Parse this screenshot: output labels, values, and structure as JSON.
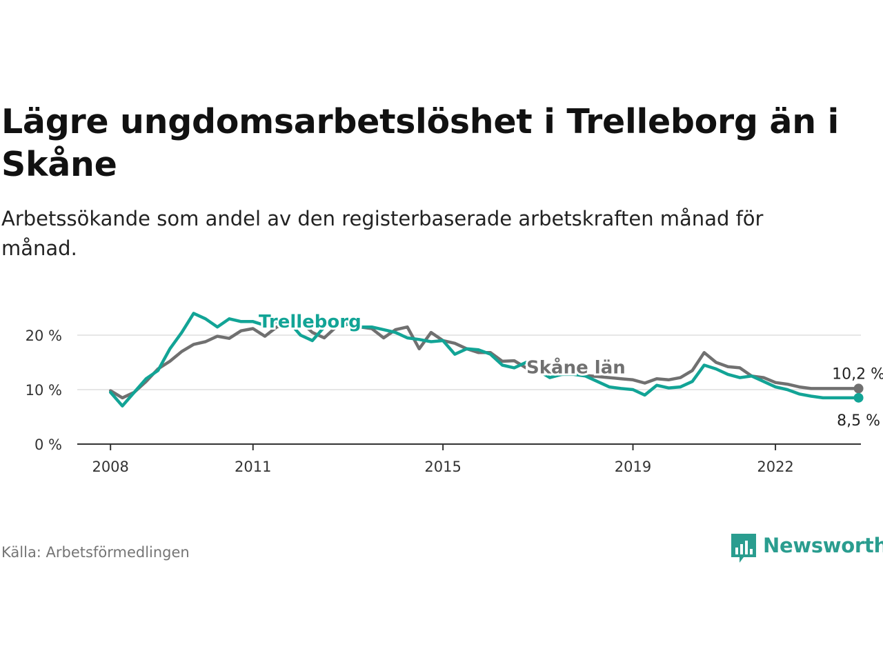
{
  "title": "Lägre ungdomsarbetslöshet i Trelleborg än i Skåne",
  "subtitle": "Arbetssökande som andel av den registerbaserade arbetskraften månad för månad.",
  "source": "Källa: Arbetsförmedlingen",
  "brand": {
    "name": "Newsworthy",
    "icon": "newsworthy-bars-icon"
  },
  "colors": {
    "trelleborg": "#12a496",
    "skane": "#707070",
    "grid": "#dddddd",
    "axis": "#333333",
    "brand": "#2a9d8f"
  },
  "chart_data": {
    "type": "line",
    "x_unit": "year",
    "xlim": [
      2007.3,
      2023.8
    ],
    "ylim": [
      0,
      20
    ],
    "y_ticks": [
      {
        "value": 0,
        "label": "0 %"
      },
      {
        "value": 10,
        "label": "10 %"
      },
      {
        "value": 20,
        "label": "20 %"
      }
    ],
    "x_ticks": [
      {
        "value": 2008,
        "label": "2008"
      },
      {
        "value": 2011,
        "label": "2011"
      },
      {
        "value": 2015,
        "label": "2015"
      },
      {
        "value": 2019,
        "label": "2019"
      },
      {
        "value": 2022,
        "label": "2022"
      }
    ],
    "series": [
      {
        "name": "Skåne län",
        "label": "Skåne län",
        "color": "#707070",
        "x": [
          2008.0,
          2008.25,
          2008.5,
          2008.75,
          2009.0,
          2009.25,
          2009.5,
          2009.75,
          2010.0,
          2010.25,
          2010.5,
          2010.75,
          2011.0,
          2011.25,
          2011.5,
          2011.75,
          2012.0,
          2012.25,
          2012.5,
          2012.75,
          2013.0,
          2013.25,
          2013.5,
          2013.75,
          2014.0,
          2014.25,
          2014.5,
          2014.75,
          2015.0,
          2015.25,
          2015.5,
          2015.75,
          2016.0,
          2016.25,
          2016.5,
          2016.75,
          2017.0,
          2017.25,
          2017.5,
          2017.75,
          2018.0,
          2018.25,
          2018.5,
          2018.75,
          2019.0,
          2019.25,
          2019.5,
          2019.75,
          2020.0,
          2020.25,
          2020.5,
          2020.75,
          2021.0,
          2021.25,
          2021.5,
          2021.75,
          2022.0,
          2022.25,
          2022.5,
          2022.75,
          2023.0,
          2023.25,
          2023.5,
          2023.75
        ],
        "y": [
          9.8,
          8.5,
          9.5,
          11.5,
          13.8,
          15.2,
          17.0,
          18.3,
          18.8,
          19.8,
          19.4,
          20.8,
          21.2,
          19.8,
          21.5,
          22.0,
          22.5,
          20.5,
          19.5,
          21.5,
          22.0,
          21.5,
          21.2,
          19.5,
          21.0,
          21.5,
          17.5,
          20.5,
          19.0,
          18.5,
          17.5,
          16.8,
          16.8,
          15.2,
          15.3,
          14.0,
          13.8,
          13.2,
          12.8,
          12.9,
          12.6,
          12.4,
          12.2,
          12.0,
          11.8,
          11.2,
          12.0,
          11.8,
          12.2,
          13.5,
          16.8,
          15.0,
          14.2,
          14.0,
          12.5,
          12.2,
          11.3,
          11.0,
          10.5,
          10.2,
          10.2,
          10.2,
          10.2,
          10.2
        ]
      },
      {
        "name": "Trelleborg",
        "label": "Trelleborg",
        "color": "#12a496",
        "x": [
          2008.0,
          2008.25,
          2008.5,
          2008.75,
          2009.0,
          2009.25,
          2009.5,
          2009.75,
          2010.0,
          2010.25,
          2010.5,
          2010.75,
          2011.0,
          2011.25,
          2011.5,
          2011.75,
          2012.0,
          2012.25,
          2012.5,
          2012.75,
          2013.0,
          2013.25,
          2013.5,
          2013.75,
          2014.0,
          2014.25,
          2014.5,
          2014.75,
          2015.0,
          2015.25,
          2015.5,
          2015.75,
          2016.0,
          2016.25,
          2016.5,
          2016.75,
          2017.0,
          2017.25,
          2017.5,
          2017.75,
          2018.0,
          2018.25,
          2018.5,
          2018.75,
          2019.0,
          2019.25,
          2019.5,
          2019.75,
          2020.0,
          2020.25,
          2020.5,
          2020.75,
          2021.0,
          2021.25,
          2021.5,
          2021.75,
          2022.0,
          2022.25,
          2022.5,
          2022.75,
          2023.0,
          2023.25,
          2023.5,
          2023.75
        ],
        "y": [
          9.5,
          7.0,
          9.5,
          12.0,
          13.5,
          17.5,
          20.5,
          24.0,
          23.0,
          21.5,
          23.0,
          22.5,
          22.5,
          21.8,
          22.5,
          22.5,
          20.0,
          19.0,
          21.5,
          22.5,
          22.0,
          21.5,
          21.5,
          21.0,
          20.5,
          19.5,
          19.2,
          18.8,
          19.0,
          16.5,
          17.5,
          17.3,
          16.5,
          14.5,
          14.0,
          15.0,
          13.5,
          12.2,
          12.8,
          12.8,
          12.5,
          11.5,
          10.5,
          10.2,
          10.0,
          9.0,
          10.8,
          10.3,
          10.5,
          11.5,
          14.5,
          13.8,
          12.8,
          12.2,
          12.5,
          11.5,
          10.5,
          10.0,
          9.2,
          8.8,
          8.5,
          8.5,
          8.5,
          8.5
        ]
      }
    ],
    "annotations": [
      {
        "text": "10,2 %",
        "series": "Skåne län",
        "x": 2023.75,
        "y": 10.2
      },
      {
        "text": "8,5 %",
        "series": "Trelleborg",
        "x": 2023.75,
        "y": 8.5
      }
    ]
  }
}
